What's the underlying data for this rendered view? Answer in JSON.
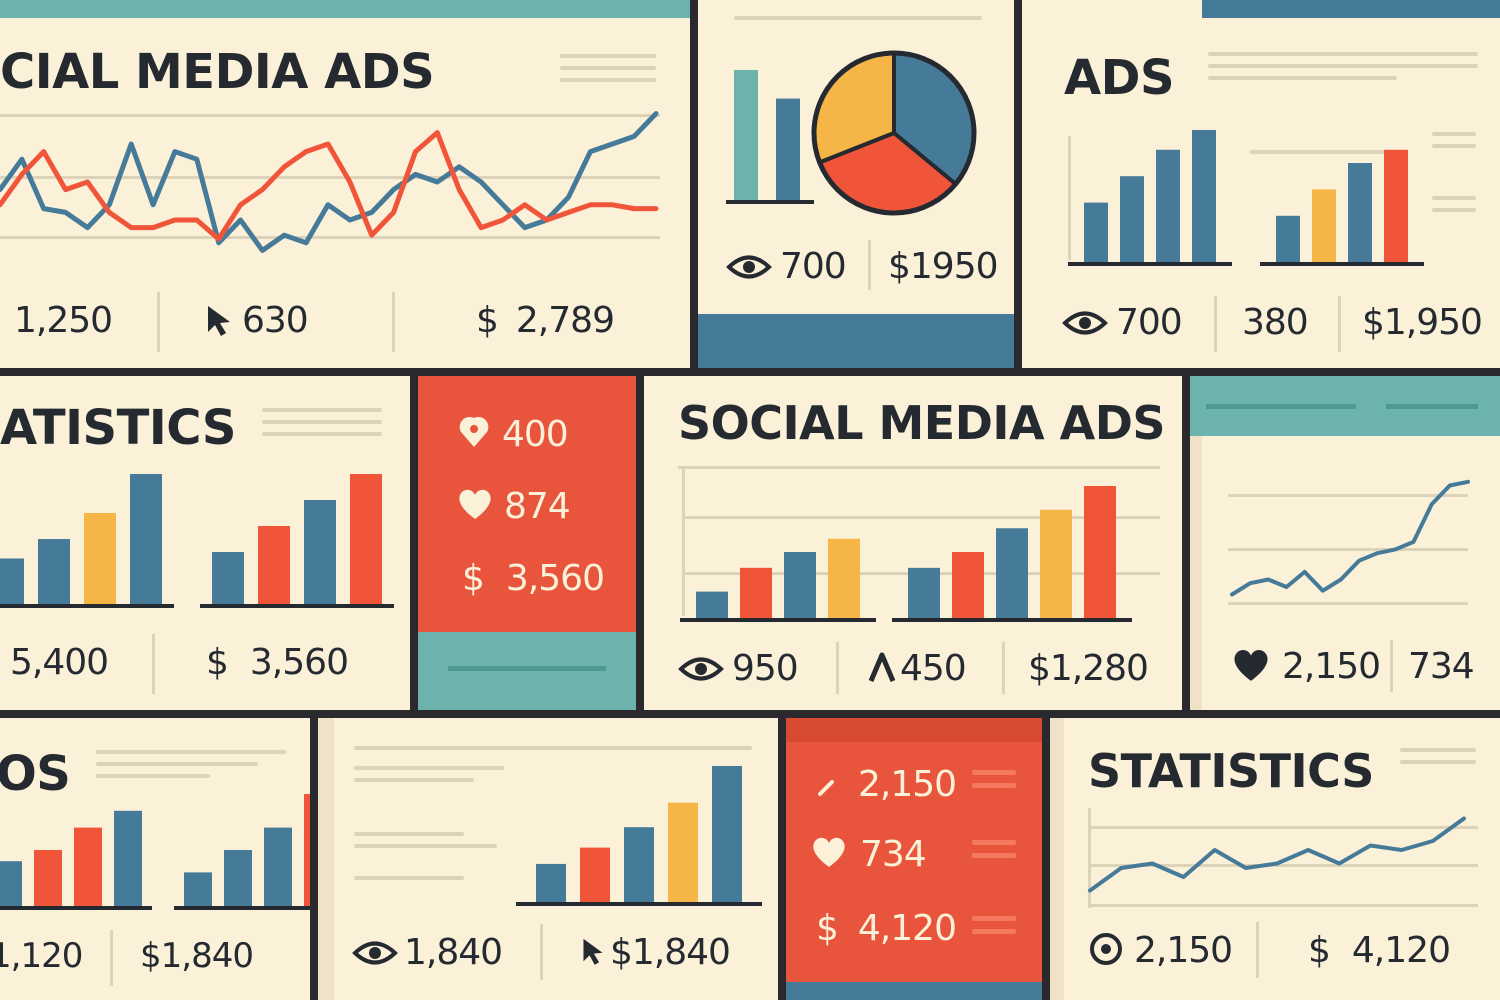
{
  "colors": {
    "cream": "#fbf0d8",
    "navy": "#252a31",
    "blue": "#467a99",
    "teal": "#6cb3ae",
    "orange": "#f0553a",
    "yellow": "#f6b547",
    "red_panel": "#e9553c",
    "light_line": "#ddd2ba"
  },
  "panel_a": {
    "title": "CIAL MEDIA ADS",
    "impressions": "1,250",
    "clicks": "630",
    "spend": "2,789"
  },
  "panel_b": {
    "views": "700",
    "spend": "$1950"
  },
  "panel_c": {
    "title": "ADS",
    "views": "700",
    "count": "380",
    "spend": "$1,950"
  },
  "panel_d": {
    "title": "ATISTICS",
    "views": "5,400",
    "spend": "3,560"
  },
  "panel_e": {
    "saves": "400",
    "likes": "874",
    "spend": "3,560"
  },
  "panel_f": {
    "title": "SOCIAL MEDIA ADS",
    "views": "950",
    "shares": "450",
    "spend": "$1,280"
  },
  "panel_g": {
    "likes": "2,150",
    "count": "734"
  },
  "panel_h": {
    "title": "OS",
    "views": "1,120",
    "spend": "$1,840"
  },
  "panel_i": {
    "views": "1,840",
    "spend": "$1,840"
  },
  "panel_j": {
    "shares": "2,150",
    "likes": "734",
    "spend": "4,120"
  },
  "panel_k": {
    "title": "STATISTICS",
    "views": "2,150",
    "spend": "4,120"
  },
  "currency": "$",
  "chart_data": [
    {
      "type": "line",
      "panel": "panel_a",
      "series": [
        {
          "color": "#467a99",
          "values": [
            200,
            240,
            175,
            170,
            150,
            180,
            260,
            180,
            250,
            240,
            130,
            160,
            120,
            140,
            130,
            180,
            160,
            170,
            200,
            220,
            210,
            230,
            210,
            180,
            150,
            160,
            190,
            250,
            260,
            270,
            300
          ]
        },
        {
          "color": "#f0553a",
          "values": [
            180,
            220,
            250,
            200,
            210,
            170,
            150,
            150,
            160,
            160,
            135,
            180,
            200,
            230,
            250,
            260,
            210,
            140,
            170,
            250,
            275,
            200,
            150,
            160,
            180,
            160,
            170,
            180,
            180,
            175,
            175
          ]
        }
      ]
    },
    {
      "type": "bar",
      "panel": "panel_b",
      "values": [
        100,
        78
      ],
      "colors": [
        "#6cb3ae",
        "#467a99"
      ]
    },
    {
      "type": "pie",
      "panel": "panel_b",
      "slices": [
        {
          "value": 36,
          "color": "#467a99"
        },
        {
          "value": 33,
          "color": "#f0553a"
        },
        {
          "value": 31,
          "color": "#f6b547"
        }
      ]
    },
    {
      "type": "bar",
      "panel": "panel_c",
      "groups": [
        {
          "values": [
            45,
            65,
            85,
            100
          ],
          "colors": [
            "#467a99",
            "#467a99",
            "#467a99",
            "#467a99"
          ]
        },
        {
          "values": [
            35,
            55,
            75,
            85
          ],
          "colors": [
            "#467a99",
            "#f6b547",
            "#467a99",
            "#f0553a"
          ]
        }
      ]
    },
    {
      "type": "bar",
      "panel": "panel_d",
      "groups": [
        {
          "values": [
            35,
            50,
            70,
            100
          ],
          "colors": [
            "#467a99",
            "#467a99",
            "#f6b547",
            "#467a99"
          ]
        },
        {
          "values": [
            40,
            60,
            80,
            100
          ],
          "colors": [
            "#467a99",
            "#f0553a",
            "#467a99",
            "#f0553a"
          ]
        }
      ]
    },
    {
      "type": "bar",
      "panel": "panel_f",
      "groups": [
        {
          "values": [
            20,
            38,
            50,
            60
          ],
          "colors": [
            "#467a99",
            "#f0553a",
            "#467a99",
            "#f6b547"
          ]
        },
        {
          "values": [
            38,
            50,
            68,
            82,
            100
          ],
          "colors": [
            "#467a99",
            "#f0553a",
            "#467a99",
            "#f6b547",
            "#f0553a"
          ]
        }
      ]
    },
    {
      "type": "line",
      "panel": "panel_g",
      "series": [
        {
          "color": "#467a99",
          "values": [
            40,
            55,
            60,
            50,
            70,
            45,
            60,
            85,
            95,
            100,
            110,
            160,
            185,
            190
          ]
        }
      ]
    },
    {
      "type": "bar",
      "panel": "panel_h",
      "groups": [
        {
          "values": [
            40,
            50,
            70,
            85
          ],
          "colors": [
            "#467a99",
            "#f0553a",
            "#f0553a",
            "#467a99"
          ]
        },
        {
          "values": [
            30,
            50,
            70,
            100
          ],
          "colors": [
            "#467a99",
            "#467a99",
            "#467a99",
            "#f0553a"
          ]
        }
      ]
    },
    {
      "type": "bar",
      "panel": "panel_i",
      "groups": [
        {
          "values": [
            28,
            40,
            55,
            73,
            100
          ],
          "colors": [
            "#467a99",
            "#f0553a",
            "#467a99",
            "#f6b547",
            "#467a99"
          ]
        }
      ]
    },
    {
      "type": "line",
      "panel": "panel_k",
      "series": [
        {
          "color": "#467a99",
          "values": [
            40,
            65,
            70,
            55,
            85,
            65,
            70,
            85,
            70,
            90,
            85,
            95,
            120
          ]
        }
      ]
    }
  ]
}
